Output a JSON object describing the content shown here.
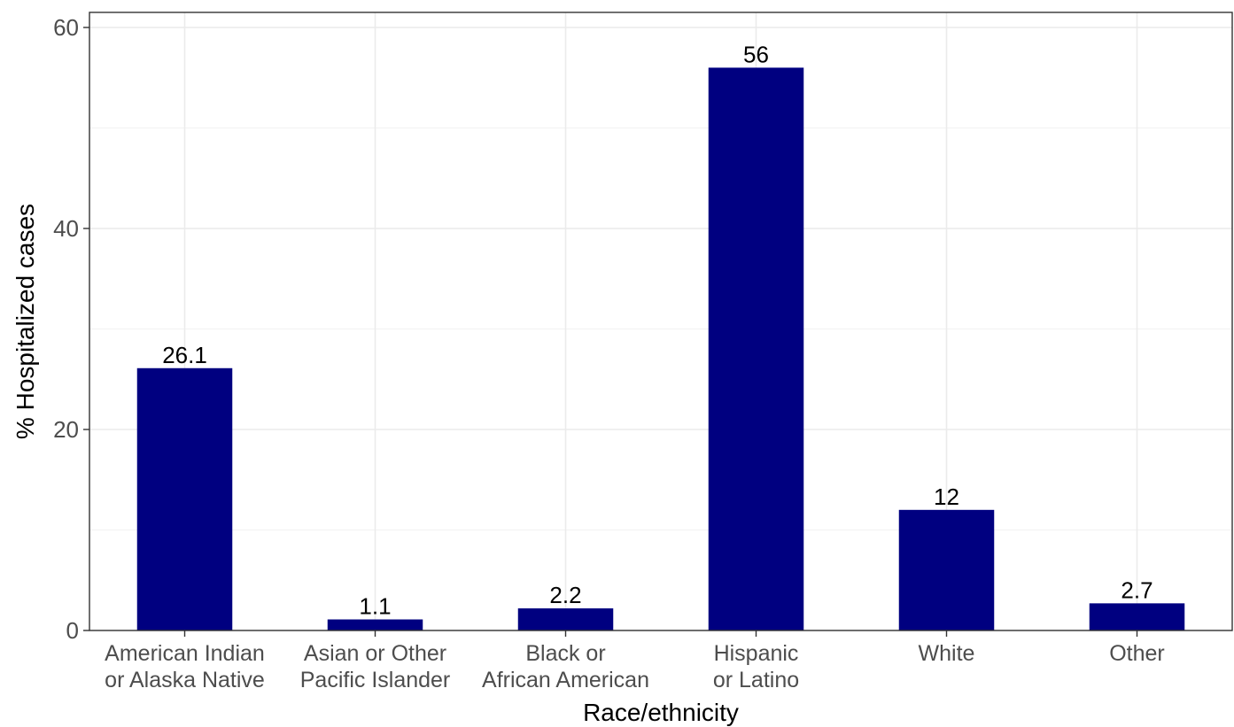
{
  "chart_data": {
    "type": "bar",
    "categories": [
      [
        "American Indian",
        "or Alaska Native"
      ],
      [
        "Asian or Other",
        "Pacific Islander"
      ],
      [
        "Black or",
        "African American"
      ],
      [
        "Hispanic",
        "or Latino"
      ],
      [
        "White"
      ],
      [
        "Other"
      ]
    ],
    "values": [
      26.1,
      1.1,
      2.2,
      56,
      12,
      2.7
    ],
    "data_labels": [
      "26.1",
      "1.1",
      "2.2",
      "56",
      "12",
      "2.7"
    ],
    "xlabel": "Race/ethnicity",
    "ylabel": "% Hospitalized cases",
    "ylim": [
      0,
      61.5
    ],
    "yticks": [
      0,
      20,
      40,
      60
    ],
    "grid": true,
    "legend": "none",
    "bar_color": "#000080"
  }
}
